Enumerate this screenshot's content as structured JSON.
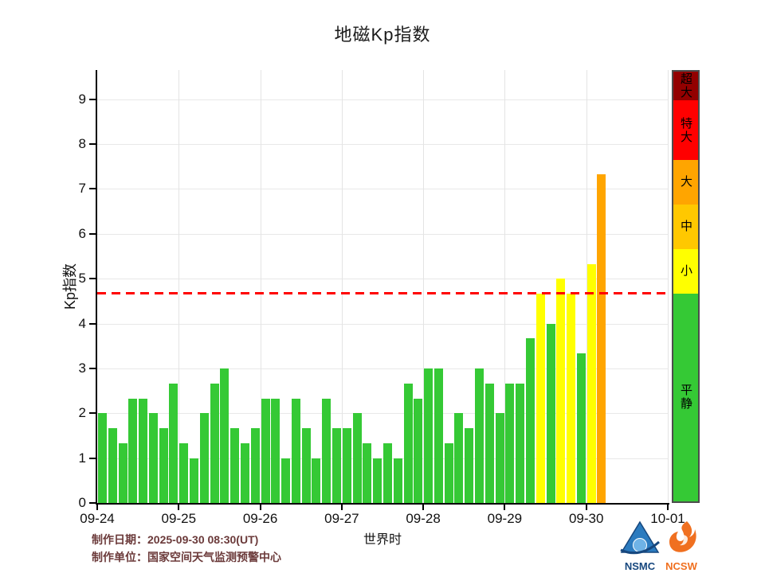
{
  "title": "地磁Kp指数",
  "axes": {
    "ylabel": "Kp指数",
    "xlabel": "世界时",
    "yticks": [
      "0",
      "1",
      "2",
      "3",
      "4",
      "5",
      "6",
      "7",
      "8",
      "9"
    ],
    "xticks": [
      "09-24",
      "09-25",
      "09-26",
      "09-27",
      "09-28",
      "09-29",
      "09-30",
      "10-01"
    ],
    "ymax": 9.65
  },
  "chart_data": {
    "type": "bar",
    "title": "地磁Kp指数",
    "xlabel": "世界时",
    "ylabel": "Kp指数",
    "ylim": [
      0,
      9.65
    ],
    "grid": "on",
    "interval_hours": 3,
    "bars_per_day": 8,
    "categories": [
      "09-24",
      "09-25",
      "09-26",
      "09-27",
      "09-28",
      "09-29",
      "09-30",
      "10-01"
    ],
    "days": [
      {
        "date": "09-24",
        "values": [
          2.0,
          1.67,
          1.33,
          2.33,
          2.33,
          2.0,
          1.67,
          2.67
        ]
      },
      {
        "date": "09-25",
        "values": [
          1.33,
          1.0,
          2.0,
          2.67,
          3.0,
          1.67,
          1.33,
          1.67
        ]
      },
      {
        "date": "09-26",
        "values": [
          2.33,
          2.33,
          1.0,
          2.33,
          1.67,
          1.0,
          2.33,
          1.67
        ]
      },
      {
        "date": "09-27",
        "values": [
          1.67,
          2.0,
          1.33,
          1.0,
          1.33,
          1.0,
          2.67,
          2.33
        ]
      },
      {
        "date": "09-28",
        "values": [
          3.0,
          3.0,
          1.33,
          2.0,
          1.67,
          3.0,
          2.67,
          2.0
        ]
      },
      {
        "date": "09-29",
        "values": [
          2.67,
          2.67,
          3.67,
          4.67,
          4.0,
          5.0,
          4.67,
          3.33
        ]
      },
      {
        "date": "09-30",
        "values": [
          5.33,
          7.33
        ]
      }
    ],
    "threshold_line": {
      "value": 4.67,
      "color": "#ff0000",
      "style": "dashed"
    },
    "level_colors": [
      {
        "max": 4.67,
        "color": "#35c935",
        "label": "平静"
      },
      {
        "max": 5.67,
        "color": "#ffff00",
        "label": "小"
      },
      {
        "max": 6.67,
        "color": "#ffc800",
        "label": "中"
      },
      {
        "max": 7.67,
        "color": "#ffa500",
        "label": "大"
      },
      {
        "max": 9.0,
        "color": "#ff0000",
        "label": "特大"
      },
      {
        "max": 99,
        "color": "#930000",
        "label": "超大"
      }
    ]
  },
  "colorbar": {
    "segments": [
      {
        "label": "超大",
        "color": "#930000",
        "kp_from": 9.0,
        "kp_to": 9.65
      },
      {
        "label": "特大",
        "color": "#ff0000",
        "kp_from": 7.67,
        "kp_to": 9.0
      },
      {
        "label": "大",
        "color": "#ffa500",
        "kp_from": 6.67,
        "kp_to": 7.67
      },
      {
        "label": "中",
        "color": "#ffc800",
        "kp_from": 5.67,
        "kp_to": 6.67
      },
      {
        "label": "小",
        "color": "#ffff00",
        "kp_from": 4.67,
        "kp_to": 5.67
      },
      {
        "label": "平静",
        "color": "#35c935",
        "kp_from": 0,
        "kp_to": 4.67
      }
    ]
  },
  "footer": {
    "made_date": "制作日期：2025-09-30 08:30(UT)",
    "made_by": "制作单位：国家空间天气监测预警中心"
  },
  "logos": {
    "nsmc": "NSMC",
    "ncsw": "NCSW"
  },
  "colors": {
    "bar_green": "#35c935",
    "bar_yellow": "#ffff00",
    "bar_orange": "#ffa500",
    "threshold_red": "#ff0000",
    "footer_text": "#6b3a3a",
    "nsmc_blue": "#16477e",
    "ncsw_orange": "#f07020"
  }
}
